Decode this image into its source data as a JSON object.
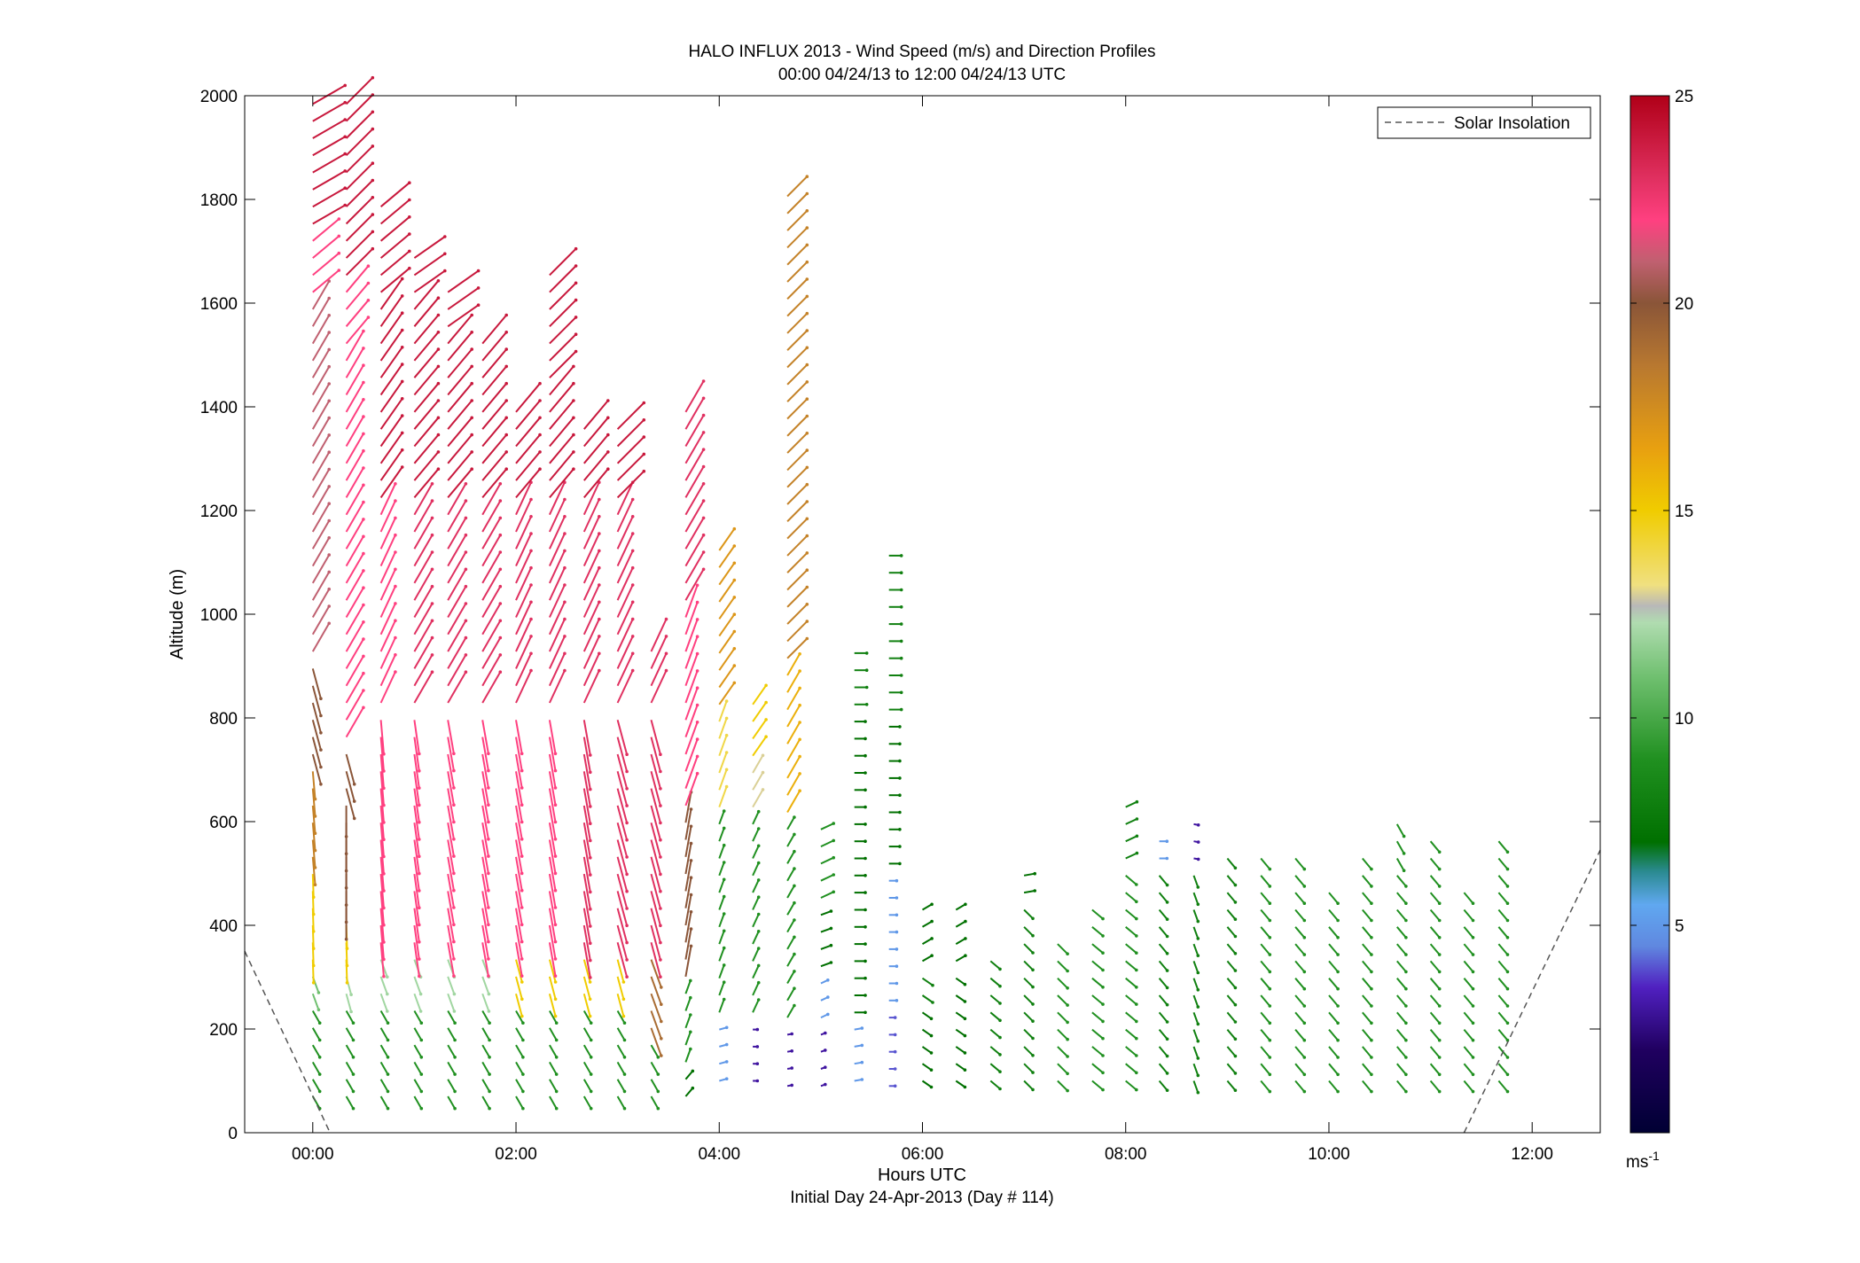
{
  "chart_data": {
    "type": "quiver",
    "title": "HALO INFLUX 2013 - Wind Speed (m/s) and Direction Profiles",
    "subtitle": "00:00 04/24/13 to 12:00 04/24/13  UTC",
    "xlabel": "Hours UTC",
    "xlabel2": "Initial Day 24-Apr-2013 (Day # 114)",
    "ylabel": "Altitude (m)",
    "xlim": [
      -0.67,
      12.67
    ],
    "ylim": [
      0,
      2000
    ],
    "x_ticks": [
      {
        "v": 0,
        "label": "00:00"
      },
      {
        "v": 2,
        "label": "02:00"
      },
      {
        "v": 4,
        "label": "04:00"
      },
      {
        "v": 6,
        "label": "06:00"
      },
      {
        "v": 8,
        "label": "08:00"
      },
      {
        "v": 10,
        "label": "10:00"
      },
      {
        "v": 12,
        "label": "12:00"
      }
    ],
    "y_ticks": [
      {
        "v": 0,
        "label": "0"
      },
      {
        "v": 200,
        "label": "200"
      },
      {
        "v": 400,
        "label": "400"
      },
      {
        "v": 600,
        "label": "600"
      },
      {
        "v": 800,
        "label": "800"
      },
      {
        "v": 1000,
        "label": "1000"
      },
      {
        "v": 1200,
        "label": "1200"
      },
      {
        "v": 1400,
        "label": "1400"
      },
      {
        "v": 1600,
        "label": "1600"
      },
      {
        "v": 1800,
        "label": "1800"
      },
      {
        "v": 2000,
        "label": "2000"
      }
    ],
    "legend": {
      "label": "Solar Insolation",
      "placement": "top-right"
    },
    "colorbar": {
      "range": [
        0,
        25
      ],
      "unit": "ms",
      "unit_sup": "-1",
      "ticks": [
        {
          "v": 5,
          "label": "5"
        },
        {
          "v": 10,
          "label": "10"
        },
        {
          "v": 15,
          "label": "15"
        },
        {
          "v": 20,
          "label": "20"
        },
        {
          "v": 25,
          "label": "25"
        }
      ],
      "colormap": [
        [
          0,
          "#000033"
        ],
        [
          2,
          "#200060"
        ],
        [
          3.5,
          "#5020c0"
        ],
        [
          4.5,
          "#6088e0"
        ],
        [
          5.5,
          "#60a8f0"
        ],
        [
          6.3,
          "#2a8a90"
        ],
        [
          7,
          "#007000"
        ],
        [
          9,
          "#209020"
        ],
        [
          11,
          "#70c070"
        ],
        [
          12.3,
          "#b0dcb0"
        ],
        [
          12.7,
          "#b8b8b8"
        ],
        [
          13.2,
          "#f0e080"
        ],
        [
          15,
          "#f0cc00"
        ],
        [
          16.5,
          "#e8a010"
        ],
        [
          18.5,
          "#b87830"
        ],
        [
          20,
          "#8a5538"
        ],
        [
          21,
          "#c06070"
        ],
        [
          22,
          "#ff4080"
        ],
        [
          23,
          "#e03060"
        ],
        [
          25,
          "#b00018"
        ]
      ]
    },
    "solar_insolation_curves": [
      {
        "x": [
          -0.67,
          0.17
        ],
        "y": [
          350,
          0
        ]
      },
      {
        "x": [
          11.33,
          12.67
        ],
        "y": [
          0,
          545
        ]
      }
    ],
    "wind_profiles_note": "Vectors: each profile time, altitude, speed (m/s) and direction (deg, direction the arrow points, clockwise from north).",
    "wind_profiles": [
      {
        "t": 0.0,
        "z0": 70,
        "z1": 2000,
        "dz": 33,
        "segs": [
          [
            0,
            9,
            150
          ],
          [
            250,
            11,
            160
          ],
          [
            320,
            15,
            178
          ],
          [
            500,
            18,
            175
          ],
          [
            700,
            20,
            165
          ],
          [
            900,
            21,
            30
          ],
          [
            1600,
            22,
            50
          ],
          [
            1750,
            24,
            60
          ]
        ]
      },
      {
        "t": 0.33,
        "z0": 70,
        "z1": 2000,
        "dz": 33,
        "segs": [
          [
            0,
            9,
            150
          ],
          [
            250,
            12,
            165
          ],
          [
            320,
            15,
            178
          ],
          [
            430,
            20,
            180
          ],
          [
            650,
            20,
            165
          ],
          [
            750,
            22,
            30
          ],
          [
            1500,
            22,
            40
          ],
          [
            1650,
            24,
            45
          ]
        ]
      },
      {
        "t": 0.67,
        "z0": 70,
        "z1": 1800,
        "dz": 33,
        "segs": [
          [
            0,
            9,
            150
          ],
          [
            250,
            12,
            160
          ],
          [
            350,
            22,
            175
          ],
          [
            800,
            22,
            25
          ],
          [
            1200,
            24,
            35
          ],
          [
            1600,
            24,
            50
          ]
        ]
      },
      {
        "t": 1.0,
        "z0": 70,
        "z1": 1700,
        "dz": 33,
        "segs": [
          [
            0,
            9,
            150
          ],
          [
            250,
            12,
            160
          ],
          [
            350,
            22,
            172
          ],
          [
            800,
            23,
            30
          ],
          [
            1200,
            24,
            40
          ],
          [
            1600,
            24,
            55
          ]
        ]
      },
      {
        "t": 1.33,
        "z0": 70,
        "z1": 1650,
        "dz": 33,
        "segs": [
          [
            0,
            9,
            150
          ],
          [
            250,
            12,
            160
          ],
          [
            350,
            22,
            170
          ],
          [
            800,
            23,
            30
          ],
          [
            1200,
            24,
            40
          ],
          [
            1550,
            24,
            55
          ]
        ]
      },
      {
        "t": 1.67,
        "z0": 70,
        "z1": 1530,
        "dz": 33,
        "segs": [
          [
            0,
            9,
            150
          ],
          [
            250,
            12,
            160
          ],
          [
            350,
            22,
            170
          ],
          [
            800,
            23,
            30
          ],
          [
            1200,
            24,
            40
          ]
        ]
      },
      {
        "t": 2.0,
        "z0": 70,
        "z1": 1420,
        "dz": 33,
        "segs": [
          [
            0,
            9,
            150
          ],
          [
            250,
            15,
            165
          ],
          [
            350,
            22,
            170
          ],
          [
            800,
            23,
            25
          ],
          [
            1200,
            24,
            40
          ]
        ]
      },
      {
        "t": 2.33,
        "z0": 70,
        "z1": 1670,
        "dz": 33,
        "segs": [
          [
            0,
            9,
            150
          ],
          [
            250,
            15,
            165
          ],
          [
            350,
            22,
            170
          ],
          [
            800,
            23,
            25
          ],
          [
            1200,
            24,
            40
          ],
          [
            1450,
            24,
            45
          ]
        ]
      },
      {
        "t": 2.67,
        "z0": 70,
        "z1": 1370,
        "dz": 33,
        "segs": [
          [
            0,
            9,
            150
          ],
          [
            250,
            15,
            165
          ],
          [
            350,
            23,
            170
          ],
          [
            800,
            23,
            25
          ],
          [
            1200,
            24,
            40
          ]
        ]
      },
      {
        "t": 3.0,
        "z0": 70,
        "z1": 1370,
        "dz": 33,
        "segs": [
          [
            0,
            9,
            150
          ],
          [
            250,
            15,
            165
          ],
          [
            350,
            23,
            165
          ],
          [
            800,
            23,
            25
          ],
          [
            1200,
            24,
            45
          ]
        ]
      },
      {
        "t": 3.33,
        "z0": 70,
        "z1": 950,
        "dz": 33,
        "segs": [
          [
            0,
            9,
            150
          ],
          [
            200,
            19,
            160
          ],
          [
            350,
            23,
            165
          ],
          [
            800,
            23,
            25
          ]
        ]
      },
      {
        "t": 3.67,
        "z0": 70,
        "z1": 1400,
        "dz": 33,
        "segs": [
          [
            0,
            7,
            40
          ],
          [
            120,
            9,
            20
          ],
          [
            300,
            20,
            10
          ],
          [
            600,
            22,
            20
          ],
          [
            1000,
            23,
            30
          ]
        ]
      },
      {
        "t": 4.0,
        "z0": 100,
        "z1": 1130,
        "dz": 33,
        "segs": [
          [
            0,
            5,
            75
          ],
          [
            200,
            9,
            20
          ],
          [
            600,
            14,
            20
          ],
          [
            800,
            17,
            35
          ]
        ]
      },
      {
        "t": 4.33,
        "z0": 100,
        "z1": 840,
        "dz": 33,
        "segs": [
          [
            0,
            3,
            90
          ],
          [
            220,
            9,
            25
          ],
          [
            600,
            13,
            30
          ],
          [
            720,
            15,
            35
          ]
        ]
      },
      {
        "t": 4.67,
        "z0": 90,
        "z1": 1830,
        "dz": 33,
        "segs": [
          [
            0,
            3,
            80
          ],
          [
            220,
            9,
            30
          ],
          [
            600,
            16,
            30
          ],
          [
            900,
            18,
            45
          ]
        ]
      },
      {
        "t": 5.0,
        "z0": 90,
        "z1": 600,
        "dz": 33,
        "segs": [
          [
            0,
            3,
            70
          ],
          [
            220,
            5,
            65
          ],
          [
            320,
            7,
            70
          ],
          [
            450,
            9,
            65
          ]
        ]
      },
      {
        "t": 5.33,
        "z0": 100,
        "z1": 950,
        "dz": 33,
        "segs": [
          [
            0,
            5,
            80
          ],
          [
            220,
            7,
            90
          ],
          [
            500,
            7,
            90
          ],
          [
            800,
            8,
            90
          ]
        ]
      },
      {
        "t": 5.67,
        "z0": 90,
        "z1": 1140,
        "dz": 33,
        "segs": [
          [
            0,
            4,
            90
          ],
          [
            250,
            5,
            90
          ],
          [
            500,
            7,
            90
          ],
          [
            800,
            8,
            90
          ]
        ]
      },
      {
        "t": 6.0,
        "z0": 100,
        "z1": 430,
        "dz": 33,
        "segs": [
          [
            0,
            7,
            125
          ],
          [
            250,
            8,
            125
          ],
          [
            330,
            7,
            60
          ]
        ]
      },
      {
        "t": 6.33,
        "z0": 100,
        "z1": 430,
        "dz": 33,
        "segs": [
          [
            0,
            7,
            125
          ],
          [
            330,
            7,
            60
          ]
        ]
      },
      {
        "t": 6.67,
        "z0": 100,
        "z1": 360,
        "dz": 33,
        "segs": [
          [
            0,
            8,
            130
          ]
        ]
      },
      {
        "t": 7.0,
        "z0": 100,
        "z1": 520,
        "dz": 33,
        "segs": [
          [
            0,
            8,
            135
          ],
          [
            450,
            7,
            80
          ]
        ]
      },
      {
        "t": 7.33,
        "z0": 100,
        "z1": 390,
        "dz": 33,
        "segs": [
          [
            0,
            9,
            135
          ]
        ]
      },
      {
        "t": 7.67,
        "z0": 100,
        "z1": 460,
        "dz": 33,
        "segs": [
          [
            0,
            9,
            130
          ]
        ]
      },
      {
        "t": 8.0,
        "z0": 100,
        "z1": 660,
        "dz": 33,
        "segs": [
          [
            0,
            9,
            130
          ],
          [
            500,
            8,
            65
          ]
        ]
      },
      {
        "t": 8.33,
        "z0": 100,
        "z1": 590,
        "dz": 33,
        "segs": [
          [
            0,
            8,
            140
          ],
          [
            520,
            5,
            90
          ]
        ]
      },
      {
        "t": 8.67,
        "z0": 100,
        "z1": 600,
        "dz": 33,
        "segs": [
          [
            0,
            8,
            160
          ],
          [
            520,
            3,
            100
          ]
        ]
      },
      {
        "t": 9.0,
        "z0": 100,
        "z1": 560,
        "dz": 33,
        "segs": [
          [
            0,
            8,
            140
          ]
        ]
      },
      {
        "t": 9.33,
        "z0": 100,
        "z1": 550,
        "dz": 33,
        "segs": [
          [
            0,
            9,
            140
          ]
        ]
      },
      {
        "t": 9.67,
        "z0": 100,
        "z1": 530,
        "dz": 33,
        "segs": [
          [
            0,
            9,
            140
          ]
        ]
      },
      {
        "t": 10.0,
        "z0": 100,
        "z1": 490,
        "dz": 33,
        "segs": [
          [
            0,
            9,
            140
          ]
        ]
      },
      {
        "t": 10.33,
        "z0": 100,
        "z1": 530,
        "dz": 33,
        "segs": [
          [
            0,
            9,
            140
          ]
        ]
      },
      {
        "t": 10.67,
        "z0": 100,
        "z1": 620,
        "dz": 33,
        "segs": [
          [
            0,
            9,
            140
          ],
          [
            500,
            9,
            150
          ]
        ]
      },
      {
        "t": 11.0,
        "z0": 100,
        "z1": 580,
        "dz": 33,
        "segs": [
          [
            0,
            9,
            140
          ]
        ]
      },
      {
        "t": 11.33,
        "z0": 100,
        "z1": 470,
        "dz": 33,
        "segs": [
          [
            0,
            9,
            140
          ]
        ]
      },
      {
        "t": 11.67,
        "z0": 100,
        "z1": 580,
        "dz": 33,
        "segs": [
          [
            0,
            9,
            140
          ]
        ]
      }
    ]
  }
}
